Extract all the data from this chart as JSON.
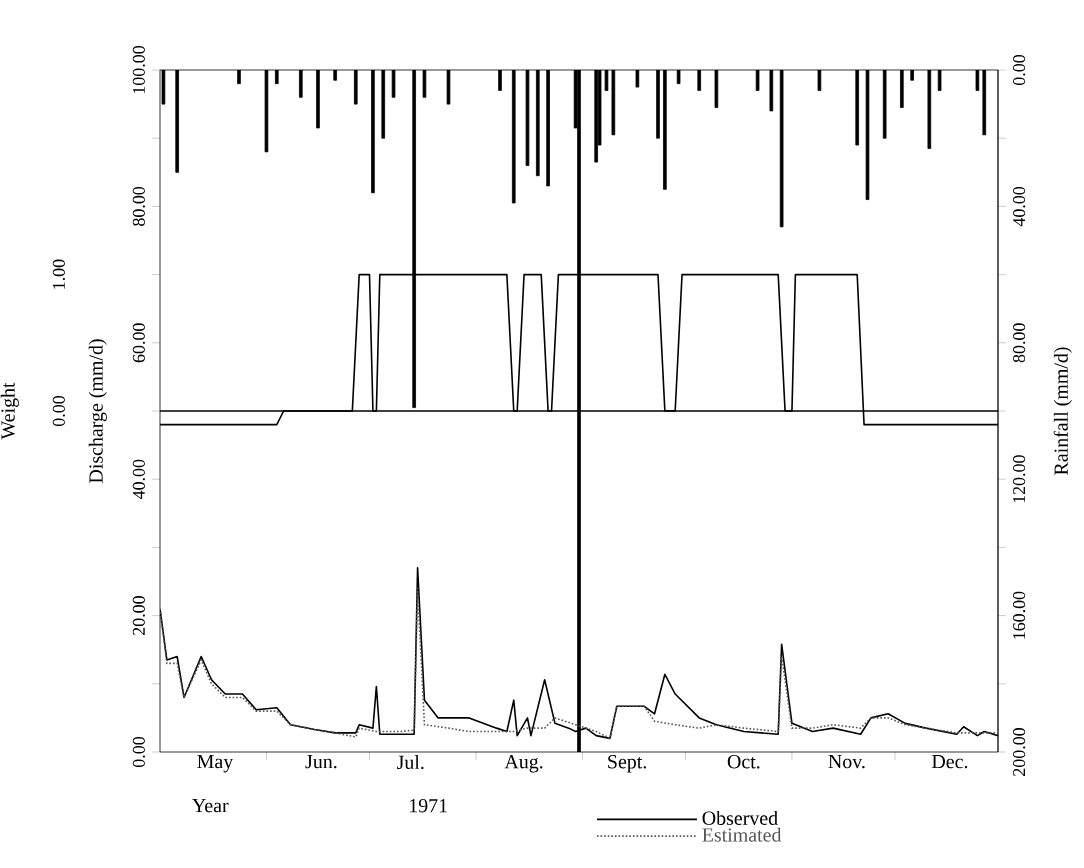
{
  "chart_data": {
    "type": "line",
    "ylabel": "Discharge (mm/d)",
    "y2label": "Rainfall (mm/d)",
    "y3label": "Weight",
    "xlabel": "1971",
    "annotations": [
      "Year"
    ],
    "legend": "bottom",
    "xlim": [
      "1971-05-01",
      "1971-12-31"
    ],
    "xticks": [
      {
        "value": "1971-05-17",
        "label": "May"
      },
      {
        "value": "1971-06-01",
        "label": null
      },
      {
        "value": "1971-06-17",
        "label": "Jun."
      },
      {
        "value": "1971-07-01",
        "label": null
      },
      {
        "value": "1971-07-13",
        "label": "Jul."
      },
      {
        "value": "1971-08-01",
        "label": null
      },
      {
        "value": "1971-08-15",
        "label": "Aug."
      },
      {
        "value": "1971-09-01",
        "label": null
      },
      {
        "value": "1971-09-14",
        "label": "Sept."
      },
      {
        "value": "1971-10-01",
        "label": null
      },
      {
        "value": "1971-10-18",
        "label": "Oct."
      },
      {
        "value": "1971-11-01",
        "label": null
      },
      {
        "value": "1971-11-17",
        "label": "Nov."
      },
      {
        "value": "1971-12-01",
        "label": null
      },
      {
        "value": "1971-12-17",
        "label": "Dec."
      }
    ],
    "ylim": [
      0,
      100
    ],
    "yticks": [
      {
        "value": 0,
        "label": "0.00"
      },
      {
        "value": 10,
        "label": null
      },
      {
        "value": 20,
        "label": "20.00"
      },
      {
        "value": 30,
        "label": null
      },
      {
        "value": 40,
        "label": "40.00"
      },
      {
        "value": 50,
        "label": null
      },
      {
        "value": 60,
        "label": "60.00"
      },
      {
        "value": 70,
        "label": null
      },
      {
        "value": 80,
        "label": "80.00"
      },
      {
        "value": 90,
        "label": null
      },
      {
        "value": 100,
        "label": "100.00"
      }
    ],
    "y2lim": [
      200,
      0
    ],
    "y2ticks": [
      {
        "value": 0,
        "label": "0.00"
      },
      {
        "value": 20,
        "label": null
      },
      {
        "value": 40,
        "label": "40.00"
      },
      {
        "value": 60,
        "label": null
      },
      {
        "value": 80,
        "label": "80.00"
      },
      {
        "value": 100,
        "label": null
      },
      {
        "value": 120,
        "label": "120.00"
      },
      {
        "value": 140,
        "label": null
      },
      {
        "value": 160,
        "label": "160.00"
      },
      {
        "value": 180,
        "label": null
      },
      {
        "value": 200,
        "label": "200.00"
      }
    ],
    "y3lim": [
      -2.5,
      2.5
    ],
    "y3ticks": [
      {
        "value": 0,
        "label": "0.00"
      },
      {
        "value": 1,
        "label": "1.00"
      }
    ],
    "ref_lines": [
      {
        "axis": "y",
        "value": 50
      }
    ],
    "series": [
      {
        "type": "bar",
        "axis": "y2",
        "color": "#000000",
        "x": [
          "1971-05-02",
          "1971-05-06",
          "1971-05-24",
          "1971-06-01",
          "1971-06-04",
          "1971-06-11",
          "1971-06-16",
          "1971-06-21",
          "1971-06-27",
          "1971-07-02",
          "1971-07-05",
          "1971-07-08",
          "1971-07-14",
          "1971-07-17",
          "1971-07-24",
          "1971-08-08",
          "1971-08-12",
          "1971-08-16",
          "1971-08-19",
          "1971-08-22",
          "1971-08-30",
          "1971-08-31",
          "1971-09-05",
          "1971-09-06",
          "1971-09-08",
          "1971-09-10",
          "1971-09-17",
          "1971-09-23",
          "1971-09-25",
          "1971-09-29",
          "1971-10-05",
          "1971-10-10",
          "1971-10-22",
          "1971-10-26",
          "1971-10-29",
          "1971-11-09",
          "1971-11-20",
          "1971-11-23",
          "1971-11-28",
          "1971-12-03",
          "1971-12-06",
          "1971-12-11",
          "1971-12-14",
          "1971-12-25",
          "1971-12-27"
        ],
        "values": [
          10,
          30,
          4,
          24,
          4,
          8,
          17,
          3,
          10,
          36,
          20,
          8,
          99,
          8,
          10,
          6,
          39,
          28,
          31,
          34,
          17,
          200,
          27,
          22,
          6,
          19,
          5,
          20,
          35,
          4,
          6,
          11,
          6,
          12,
          46,
          6,
          22,
          38,
          20,
          11,
          3,
          23,
          6,
          6,
          19
        ]
      },
      {
        "name": "Observed",
        "color": "#000000",
        "x": [
          "1971-05-01",
          "1971-05-03",
          "1971-05-06",
          "1971-05-08",
          "1971-05-13",
          "1971-05-16",
          "1971-05-20",
          "1971-05-25",
          "1971-05-29",
          "1971-06-04",
          "1971-06-08",
          "1971-06-15",
          "1971-06-21",
          "1971-06-27",
          "1971-06-28",
          "1971-07-02",
          "1971-07-03",
          "1971-07-04",
          "1971-07-14",
          "1971-07-15",
          "1971-07-17",
          "1971-07-21",
          "1971-07-30",
          "1971-08-07",
          "1971-08-10",
          "1971-08-12",
          "1971-08-13",
          "1971-08-16",
          "1971-08-17",
          "1971-08-21",
          "1971-08-24",
          "1971-08-28",
          "1971-08-30",
          "1971-09-02",
          "1971-09-05",
          "1971-09-09",
          "1971-09-11",
          "1971-09-19",
          "1971-09-22",
          "1971-09-25",
          "1971-09-28",
          "1971-10-05",
          "1971-10-10",
          "1971-10-18",
          "1971-10-28",
          "1971-10-29",
          "1971-11-01",
          "1971-11-07",
          "1971-11-13",
          "1971-11-21",
          "1971-11-24",
          "1971-11-29",
          "1971-12-04",
          "1971-12-10",
          "1971-12-19",
          "1971-12-21",
          "1971-12-25",
          "1971-12-27",
          "1971-12-31"
        ],
        "values": [
          21,
          13.5,
          14,
          8,
          14,
          10.6,
          8.5,
          8.5,
          6.2,
          6.5,
          4,
          3.3,
          2.8,
          2.8,
          4,
          3.5,
          9.6,
          2.6,
          2.6,
          27,
          7.6,
          5,
          5,
          3.5,
          3,
          7.6,
          2.4,
          5,
          2.4,
          10.6,
          4.2,
          3.5,
          3,
          3.5,
          2.4,
          2,
          6.7,
          6.7,
          5.6,
          11.4,
          8.5,
          5,
          4,
          3,
          2.6,
          15.8,
          4.2,
          3,
          3.5,
          2.6,
          5,
          5.6,
          4.2,
          3.5,
          2.6,
          3.7,
          2.4,
          3,
          2.4
        ]
      },
      {
        "name": "Estimated",
        "color": "#555555",
        "line_style": "dotted",
        "x": [
          "1971-05-01",
          "1971-05-03",
          "1971-05-06",
          "1971-05-08",
          "1971-05-13",
          "1971-05-16",
          "1971-05-20",
          "1971-05-25",
          "1971-05-29",
          "1971-06-04",
          "1971-06-08",
          "1971-06-15",
          "1971-06-21",
          "1971-06-27",
          "1971-06-28",
          "1971-07-03",
          "1971-07-10",
          "1971-07-14",
          "1971-07-15",
          "1971-07-17",
          "1971-07-24",
          "1971-07-30",
          "1971-08-07",
          "1971-08-12",
          "1971-08-16",
          "1971-08-21",
          "1971-08-24",
          "1971-08-30",
          "1971-09-02",
          "1971-09-05",
          "1971-09-09",
          "1971-09-11",
          "1971-09-19",
          "1971-09-22",
          "1971-09-28",
          "1971-10-05",
          "1971-10-10",
          "1971-10-18",
          "1971-10-28",
          "1971-10-29",
          "1971-11-01",
          "1971-11-07",
          "1971-11-13",
          "1971-11-21",
          "1971-11-24",
          "1971-11-29",
          "1971-12-04",
          "1971-12-10",
          "1971-12-19",
          "1971-12-25",
          "1971-12-31"
        ],
        "values": [
          21,
          13,
          13,
          8,
          13.5,
          10,
          8,
          8,
          6,
          6,
          4,
          3.3,
          2.8,
          2.2,
          3.5,
          3,
          3,
          3.2,
          24,
          4,
          3.5,
          3,
          3,
          3,
          3.5,
          3.5,
          5,
          4,
          3.5,
          3,
          2,
          6.7,
          6.7,
          4.5,
          4,
          3.5,
          4,
          3.5,
          3,
          14,
          3.5,
          3.5,
          4,
          3.5,
          5,
          5,
          4,
          3.5,
          2.8,
          2.8,
          2.8
        ]
      },
      {
        "axis": "y3",
        "color": "#000000",
        "x": [
          "1971-05-01",
          "1971-06-04",
          "1971-06-06",
          "1971-06-26",
          "1971-06-28",
          "1971-07-01",
          "1971-07-02",
          "1971-07-03",
          "1971-07-04",
          "1971-08-10",
          "1971-08-12",
          "1971-08-13",
          "1971-08-15",
          "1971-08-20",
          "1971-08-22",
          "1971-08-23",
          "1971-08-25",
          "1971-09-23",
          "1971-09-25",
          "1971-09-28",
          "1971-09-30",
          "1971-10-28",
          "1971-10-30",
          "1971-11-01",
          "1971-11-02",
          "1971-11-20",
          "1971-11-22",
          "1971-12-31"
        ],
        "values": [
          -0.1,
          -0.1,
          0,
          0,
          1,
          1,
          0,
          0,
          1,
          1,
          0,
          0,
          1,
          1,
          0,
          0,
          1,
          1,
          0,
          0,
          1,
          1,
          0,
          0,
          1,
          1,
          -0.1,
          -0.1
        ]
      }
    ]
  }
}
